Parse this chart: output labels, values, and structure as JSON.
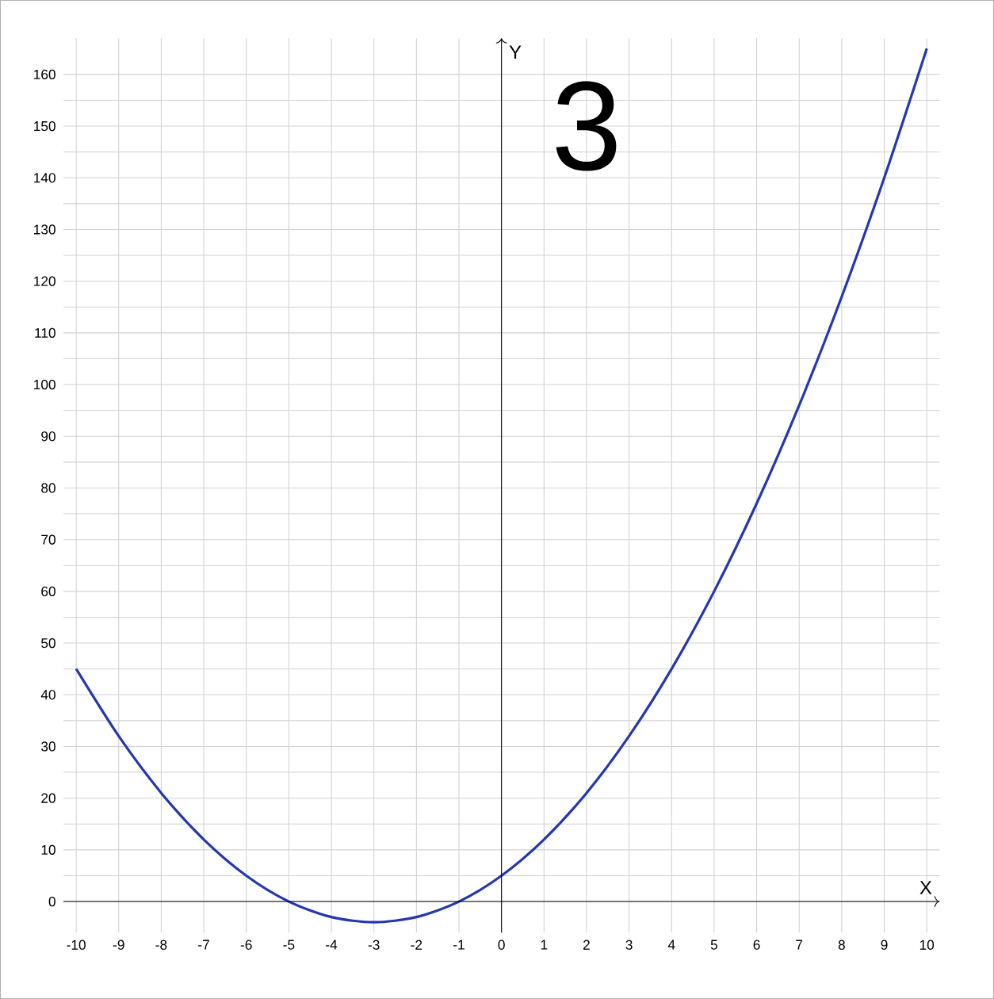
{
  "chart_data": {
    "type": "line",
    "xlabel": "X",
    "ylabel": "Y",
    "x": [
      -10,
      -9,
      -8,
      -7,
      -6,
      -5,
      -4,
      -3,
      -2,
      -1,
      0,
      1,
      2,
      3,
      4,
      5,
      6,
      7,
      8,
      9,
      10
    ],
    "series": [
      {
        "color": "#2337b0",
        "values": [
          45,
          32,
          21,
          12,
          5,
          0,
          -3,
          -4,
          -3,
          0,
          5,
          12,
          21,
          32,
          45,
          60,
          77,
          96,
          117,
          140,
          165
        ]
      }
    ],
    "xlim": [
      -10.3,
      10.3
    ],
    "ylim": [
      -6,
      167
    ],
    "xticks": [
      -10,
      -9,
      -8,
      -7,
      -6,
      -5,
      -4,
      -3,
      -2,
      -1,
      0,
      1,
      2,
      3,
      4,
      5,
      6,
      7,
      8,
      9,
      10
    ],
    "yticks": [
      0,
      10,
      20,
      30,
      40,
      50,
      60,
      70,
      80,
      90,
      100,
      110,
      120,
      130,
      140,
      150,
      160
    ],
    "grid": true,
    "marker": "none",
    "line_style": "solid",
    "annotations": [
      "3"
    ]
  }
}
